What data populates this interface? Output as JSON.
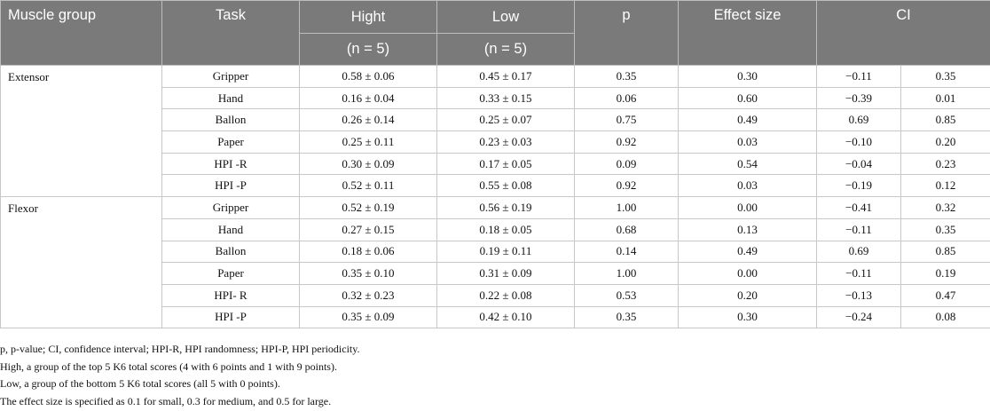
{
  "header": {
    "muscle_group": "Muscle group",
    "task": "Task",
    "high": "Hight",
    "low": "Low",
    "p": "p",
    "effect_size": "Effect size",
    "ci": "CI",
    "high_n": "(n = 5)",
    "low_n": "(n = 5)"
  },
  "groups": [
    {
      "name": "Extensor",
      "rows": [
        {
          "task": "Gripper",
          "high": "0.58 ± 0.06",
          "low": "0.45 ± 0.17",
          "p": "0.35",
          "effect": "0.30",
          "ci_low": "−0.11",
          "ci_high": "0.35"
        },
        {
          "task": "Hand",
          "high": "0.16 ± 0.04",
          "low": "0.33 ± 0.15",
          "p": "0.06",
          "effect": "0.60",
          "ci_low": "−0.39",
          "ci_high": "0.01"
        },
        {
          "task": "Ballon",
          "high": "0.26 ± 0.14",
          "low": "0.25 ± 0.07",
          "p": "0.75",
          "effect": "0.49",
          "ci_low": "0.69",
          "ci_high": "0.85"
        },
        {
          "task": "Paper",
          "high": "0.25 ± 0.11",
          "low": "0.23 ± 0.03",
          "p": "0.92",
          "effect": "0.03",
          "ci_low": "−0.10",
          "ci_high": "0.20"
        },
        {
          "task": "HPI -R",
          "high": "0.30 ± 0.09",
          "low": "0.17 ± 0.05",
          "p": "0.09",
          "effect": "0.54",
          "ci_low": "−0.04",
          "ci_high": "0.23"
        },
        {
          "task": "HPI -P",
          "high": "0.52 ± 0.11",
          "low": "0.55 ± 0.08",
          "p": "0.92",
          "effect": "0.03",
          "ci_low": "−0.19",
          "ci_high": "0.12"
        }
      ]
    },
    {
      "name": "Flexor",
      "rows": [
        {
          "task": "Gripper",
          "high": "0.52 ± 0.19",
          "low": "0.56 ± 0.19",
          "p": "1.00",
          "effect": "0.00",
          "ci_low": "−0.41",
          "ci_high": "0.32"
        },
        {
          "task": "Hand",
          "high": "0.27 ± 0.15",
          "low": "0.18 ± 0.05",
          "p": "0.68",
          "effect": "0.13",
          "ci_low": "−0.11",
          "ci_high": "0.35"
        },
        {
          "task": "Ballon",
          "high": "0.18 ± 0.06",
          "low": "0.19 ± 0.11",
          "p": "0.14",
          "effect": "0.49",
          "ci_low": "0.69",
          "ci_high": "0.85"
        },
        {
          "task": "Paper",
          "high": "0.35 ± 0.10",
          "low": "0.31 ± 0.09",
          "p": "1.00",
          "effect": "0.00",
          "ci_low": "−0.11",
          "ci_high": "0.19"
        },
        {
          "task": "HPI- R",
          "high": "0.32 ± 0.23",
          "low": "0.22 ± 0.08",
          "p": "0.53",
          "effect": "0.20",
          "ci_low": "−0.13",
          "ci_high": "0.47"
        },
        {
          "task": "HPI -P",
          "high": "0.35 ± 0.09",
          "low": "0.42 ± 0.10",
          "p": "0.35",
          "effect": "0.30",
          "ci_low": "−0.24",
          "ci_high": "0.08"
        }
      ]
    }
  ],
  "notes": [
    "p, p-value; CI, confidence interval; HPI-R, HPI randomness; HPI-P, HPI periodicity.",
    "High, a group of the top 5 K6 total scores (4 with 6 points and 1 with 9 points).",
    "Low, a group of the bottom 5 K6 total scores (all 5 with 0 points).",
    "The effect size is specified as 0.1 for small, 0.3 for medium, and 0.5 for large."
  ],
  "colors": {
    "header_bg": "#7a7a7a",
    "header_text": "#ffffff",
    "border": "#c8c8c8"
  }
}
